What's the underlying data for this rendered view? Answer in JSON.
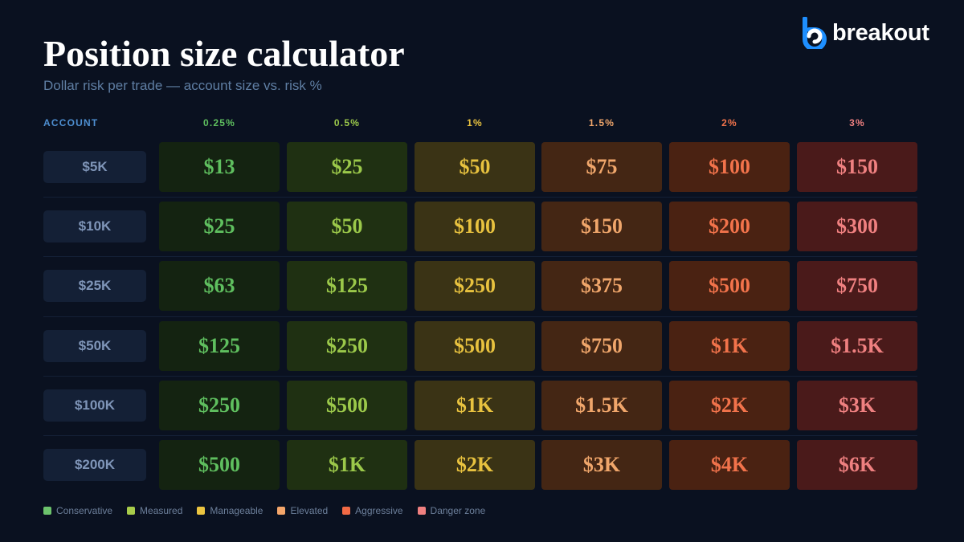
{
  "header": {
    "title": "Position size calculator",
    "subtitle": "Dollar risk per trade — account size vs. risk %"
  },
  "brand": {
    "name": "breakout",
    "logo_icon": "b-logo-icon",
    "accent": "#1e8fff"
  },
  "table": {
    "account_header": "ACCOUNT",
    "columns": [
      {
        "label": "0.25%",
        "text_color": "#5fbf5f",
        "cell_bg": "#142311"
      },
      {
        "label": "0.5%",
        "text_color": "#9bc84a",
        "cell_bg": "#1f3012"
      },
      {
        "label": "1%",
        "text_color": "#e8c23f",
        "cell_bg": "#3a3315"
      },
      {
        "label": "1.5%",
        "text_color": "#f0a66b",
        "cell_bg": "#442614"
      },
      {
        "label": "2%",
        "text_color": "#f2734b",
        "cell_bg": "#4a2212"
      },
      {
        "label": "3%",
        "text_color": "#ef8080",
        "cell_bg": "#4a1a1a"
      }
    ],
    "rows": [
      {
        "account": "$5K",
        "values": [
          "$13",
          "$25",
          "$50",
          "$75",
          "$100",
          "$150"
        ]
      },
      {
        "account": "$10K",
        "values": [
          "$25",
          "$50",
          "$100",
          "$150",
          "$200",
          "$300"
        ]
      },
      {
        "account": "$25K",
        "values": [
          "$63",
          "$125",
          "$250",
          "$375",
          "$500",
          "$750"
        ]
      },
      {
        "account": "$50K",
        "values": [
          "$125",
          "$250",
          "$500",
          "$750",
          "$1K",
          "$1.5K"
        ]
      },
      {
        "account": "$100K",
        "values": [
          "$250",
          "$500",
          "$1K",
          "$1.5K",
          "$2K",
          "$3K"
        ]
      },
      {
        "account": "$200K",
        "values": [
          "$500",
          "$1K",
          "$2K",
          "$3K",
          "$4K",
          "$6K"
        ]
      }
    ]
  },
  "legend": [
    {
      "label": "Conservative",
      "color": "#6cc36c"
    },
    {
      "label": "Measured",
      "color": "#a8cc4a"
    },
    {
      "label": "Manageable",
      "color": "#ecc540"
    },
    {
      "label": "Elevated",
      "color": "#f4a66a"
    },
    {
      "label": "Aggressive",
      "color": "#f26a45"
    },
    {
      "label": "Danger zone",
      "color": "#f08080"
    }
  ]
}
